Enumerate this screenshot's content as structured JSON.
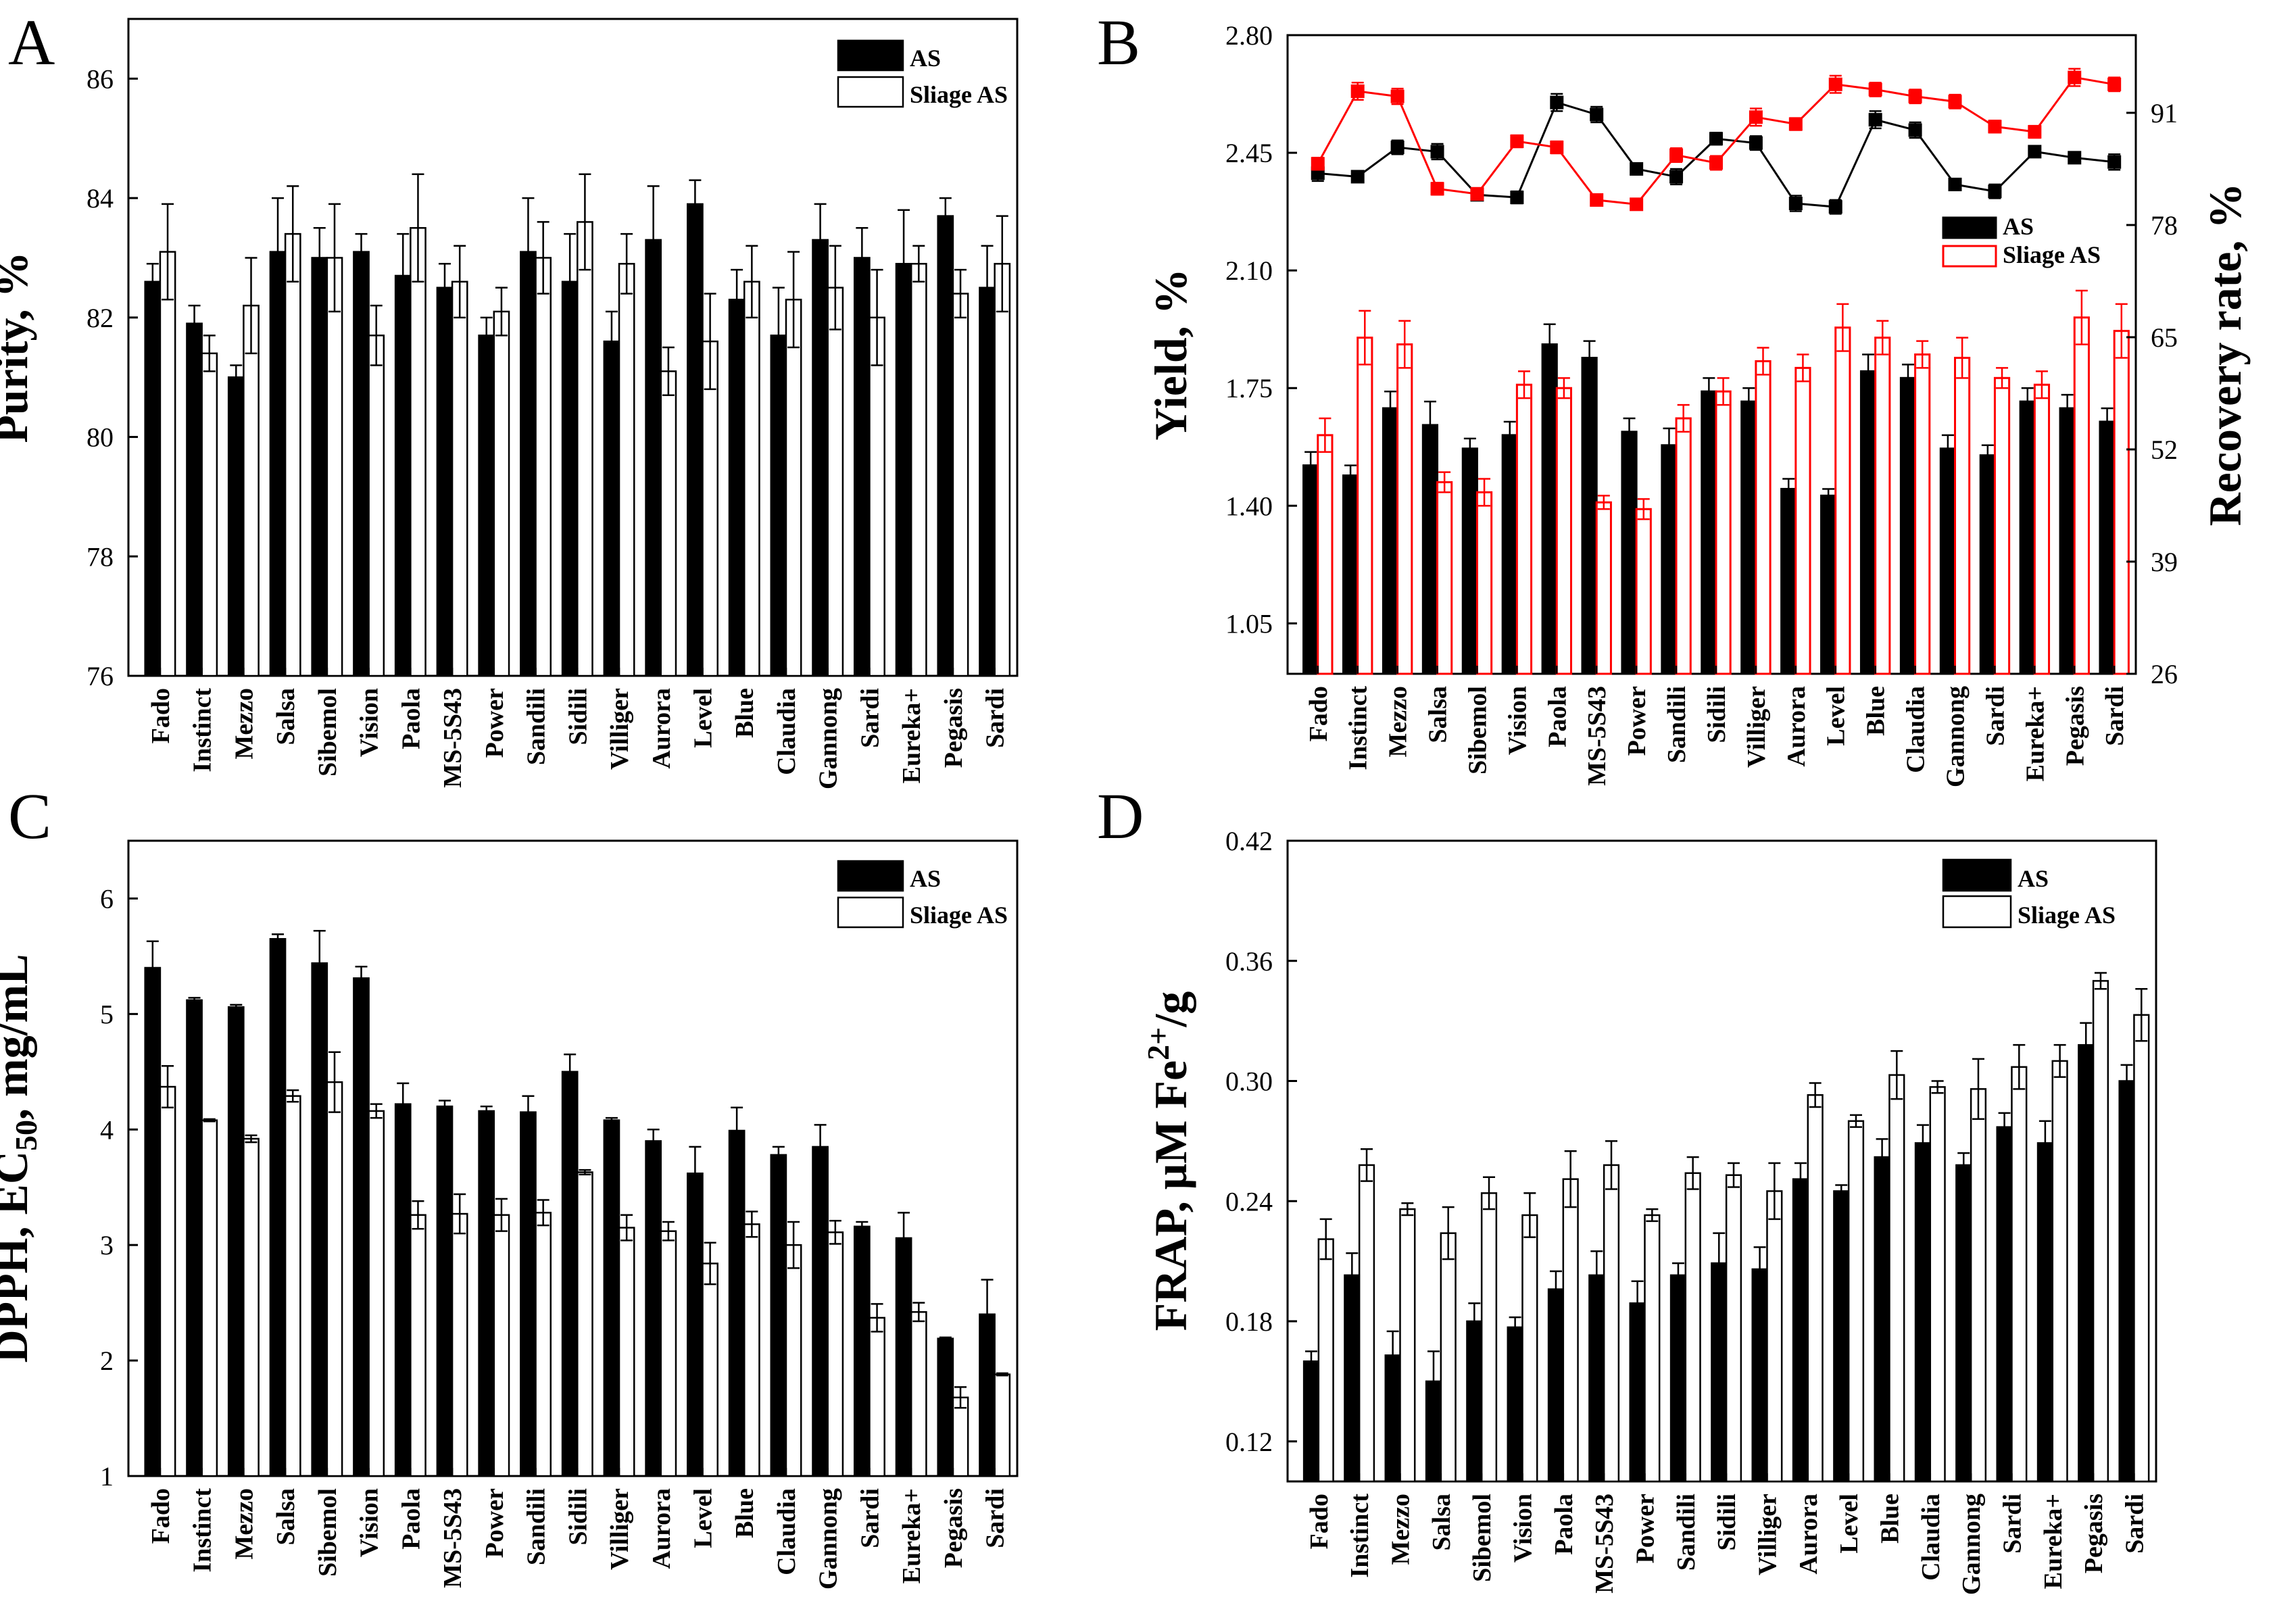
{
  "chart_data": [
    {
      "panel": "A",
      "type": "bar",
      "categories": [
        "Fado",
        "Instinct",
        "Mezzo",
        "Salsa",
        "Sibemol",
        "Vision",
        "Paola",
        "MS-5S43",
        "Power",
        "Sandili",
        "Sidili",
        "Villiger",
        "Aurora",
        "Level",
        "Blue",
        "Claudia",
        "Gannong",
        "Sardi",
        "Eureka+",
        "Pegasis",
        "Sardi"
      ],
      "ylabel": "Purity, %",
      "ylim": [
        76,
        87
      ],
      "yticks": [
        "76",
        "78",
        "80",
        "82",
        "84",
        "86"
      ],
      "series": [
        {
          "name": "AS",
          "fill": "#000000",
          "values": [
            82.6,
            81.9,
            81.0,
            83.1,
            83.0,
            83.1,
            82.7,
            82.5,
            81.7,
            83.1,
            82.6,
            81.6,
            83.3,
            83.9,
            82.3,
            81.7,
            83.3,
            83.0,
            82.9,
            83.7,
            82.5
          ],
          "errors": [
            0.3,
            0.3,
            0.2,
            0.9,
            0.5,
            0.3,
            0.7,
            0.4,
            0.3,
            0.9,
            0.8,
            0.5,
            0.9,
            0.4,
            0.5,
            0.8,
            0.6,
            0.5,
            0.9,
            0.3,
            0.7
          ]
        },
        {
          "name": "Sliage AS",
          "fill": "#ffffff",
          "values": [
            83.1,
            81.4,
            82.2,
            83.4,
            83.0,
            81.7,
            83.5,
            82.6,
            82.1,
            83.0,
            83.6,
            82.9,
            81.1,
            81.6,
            82.6,
            82.3,
            82.5,
            82.0,
            82.9,
            82.4,
            82.9
          ],
          "errors": [
            0.8,
            0.3,
            0.8,
            0.8,
            0.9,
            0.5,
            0.9,
            0.6,
            0.4,
            0.6,
            0.8,
            0.5,
            0.4,
            0.8,
            0.6,
            0.8,
            0.7,
            0.8,
            0.3,
            0.4,
            0.8
          ]
        }
      ]
    },
    {
      "panel": "B",
      "type": "bar",
      "categories": [
        "Fado",
        "Instinct",
        "Mezzo",
        "Salsa",
        "Sibemol",
        "Vision",
        "Paola",
        "MS-5S43",
        "Power",
        "Sandili",
        "Sidili",
        "Villiger",
        "Aurora",
        "Level",
        "Blue",
        "Claudia",
        "Gannong",
        "Sardi",
        "Eureka+",
        "Pegasis",
        "Sardi"
      ],
      "ylabel": "Yield, %",
      "ylim": [
        0.9,
        2.8
      ],
      "yticks": [
        "1.05",
        "1.40",
        "1.75",
        "2.10",
        "2.45",
        "2.80"
      ],
      "ylabel_right": "Recovery rate, %",
      "ylim_right": [
        26,
        100
      ],
      "yticks_right": [
        "26",
        "39",
        "52",
        "65",
        "78",
        "91"
      ],
      "series": [
        {
          "name": "AS",
          "kind": "bar",
          "axis": "left",
          "color": "#000000",
          "values": [
            1.52,
            1.49,
            1.69,
            1.64,
            1.57,
            1.61,
            1.88,
            1.84,
            1.62,
            1.58,
            1.74,
            1.71,
            1.45,
            1.43,
            1.8,
            1.78,
            1.57,
            1.55,
            1.71,
            1.69,
            1.65
          ],
          "errors": [
            0.04,
            0.03,
            0.05,
            0.07,
            0.03,
            0.04,
            0.06,
            0.05,
            0.04,
            0.05,
            0.04,
            0.04,
            0.03,
            0.02,
            0.05,
            0.04,
            0.04,
            0.03,
            0.04,
            0.04,
            0.04
          ]
        },
        {
          "name": "Sliage AS",
          "kind": "bar",
          "axis": "left",
          "color": "#ff0000",
          "values": [
            1.61,
            1.9,
            1.88,
            1.47,
            1.44,
            1.76,
            1.75,
            1.41,
            1.39,
            1.66,
            1.74,
            1.83,
            1.81,
            1.93,
            1.9,
            1.85,
            1.84,
            1.78,
            1.76,
            1.96,
            1.92
          ],
          "errors": [
            0.05,
            0.08,
            0.07,
            0.03,
            0.04,
            0.04,
            0.03,
            0.02,
            0.03,
            0.04,
            0.04,
            0.04,
            0.04,
            0.07,
            0.05,
            0.04,
            0.06,
            0.03,
            0.04,
            0.08,
            0.08
          ]
        },
        {
          "name": "AS",
          "kind": "line",
          "axis": "right",
          "color": "#000000",
          "values": [
            84.0,
            83.6,
            87.0,
            86.5,
            81.5,
            81.2,
            92.2,
            90.8,
            84.5,
            83.6,
            88.0,
            87.5,
            80.5,
            80.1,
            90.2,
            89.0,
            82.7,
            81.9,
            86.5,
            85.8,
            85.3
          ],
          "errors": [
            0.9,
            0.5,
            0.8,
            0.9,
            0.6,
            0.7,
            1.0,
            0.9,
            0.5,
            0.9,
            0.7,
            0.8,
            0.9,
            0.8,
            1.0,
            0.9,
            0.6,
            0.8,
            0.6,
            0.5,
            0.9
          ]
        },
        {
          "name": "Sliage AS",
          "kind": "line",
          "axis": "right",
          "color": "#ff0000",
          "values": [
            85.1,
            93.5,
            92.9,
            82.2,
            81.6,
            87.7,
            87.0,
            80.9,
            80.4,
            86.1,
            85.2,
            90.5,
            89.7,
            94.3,
            93.7,
            92.9,
            92.3,
            89.4,
            88.8,
            95.1,
            94.3
          ],
          "errors": [
            0.7,
            1.0,
            0.9,
            0.7,
            0.7,
            0.7,
            0.7,
            0.6,
            0.6,
            0.8,
            0.8,
            1.0,
            0.7,
            1.0,
            0.8,
            0.8,
            0.8,
            0.7,
            0.7,
            1.0,
            0.8
          ]
        }
      ]
    },
    {
      "panel": "C",
      "type": "bar",
      "categories": [
        "Fado",
        "Instinct",
        "Mezzo",
        "Salsa",
        "Sibemol",
        "Vision",
        "Paola",
        "MS-5S43",
        "Power",
        "Sandili",
        "Sidili",
        "Villiger",
        "Aurora",
        "Level",
        "Blue",
        "Claudia",
        "Gannong",
        "Sardi",
        "Eureka+",
        "Pegasis",
        "Sardi"
      ],
      "ylabel": "DPPH, EC50, mg/mL",
      "ylabel_main": "DPPH, EC",
      "ylabel_sub": "50",
      "ylabel_tail": ", mg/mL",
      "ylim": [
        1,
        6.5
      ],
      "yticks": [
        "1",
        "2",
        "3",
        "4",
        "5",
        "6"
      ],
      "series": [
        {
          "name": "AS",
          "fill": "#000000",
          "values": [
            5.4,
            5.12,
            5.06,
            5.65,
            5.44,
            5.31,
            4.22,
            4.2,
            4.16,
            4.15,
            4.5,
            4.08,
            3.9,
            3.62,
            3.99,
            3.78,
            3.85,
            3.16,
            3.06,
            2.19,
            2.4
          ],
          "errors": [
            0.23,
            0.02,
            0.02,
            0.04,
            0.28,
            0.1,
            0.18,
            0.05,
            0.04,
            0.14,
            0.15,
            0.02,
            0.1,
            0.23,
            0.2,
            0.07,
            0.19,
            0.04,
            0.22,
            0.01,
            0.3
          ]
        },
        {
          "name": "Sliage AS",
          "fill": "#ffffff",
          "values": [
            4.37,
            4.08,
            3.92,
            4.29,
            4.41,
            4.16,
            3.26,
            3.27,
            3.26,
            3.28,
            3.63,
            3.15,
            3.12,
            2.84,
            3.18,
            3.0,
            3.11,
            2.37,
            2.42,
            1.68,
            1.88
          ],
          "errors": [
            0.18,
            0.01,
            0.03,
            0.05,
            0.26,
            0.06,
            0.12,
            0.17,
            0.14,
            0.11,
            0.02,
            0.11,
            0.08,
            0.18,
            0.11,
            0.2,
            0.1,
            0.12,
            0.08,
            0.09,
            0.01
          ]
        }
      ]
    },
    {
      "panel": "D",
      "type": "bar",
      "categories": [
        "Fado",
        "Instinct",
        "Mezzo",
        "Salsa",
        "Sibemol",
        "Vision",
        "Paola",
        "MS-5S43",
        "Power",
        "Sandili",
        "Sidili",
        "Villiger",
        "Aurora",
        "Level",
        "Blue",
        "Claudia",
        "Gannong",
        "Sardi",
        "Eureka+",
        "Pegasis",
        "Sardi"
      ],
      "ylabel": "FRAP, μM Fe2+/g",
      "ylabel_main": "FRAP, μM Fe",
      "ylabel_sup": "2+",
      "ylabel_tail": "/g",
      "ylim": [
        0.1,
        0.42
      ],
      "yticks": [
        "0.12",
        "0.18",
        "0.24",
        "0.30",
        "0.36",
        "0.42"
      ],
      "series": [
        {
          "name": "AS",
          "fill": "#000000",
          "values": [
            0.16,
            0.203,
            0.163,
            0.15,
            0.18,
            0.177,
            0.196,
            0.203,
            0.189,
            0.203,
            0.209,
            0.206,
            0.251,
            0.245,
            0.262,
            0.269,
            0.258,
            0.277,
            0.269,
            0.318,
            0.3
          ],
          "errors": [
            0.005,
            0.011,
            0.012,
            0.015,
            0.009,
            0.005,
            0.009,
            0.012,
            0.011,
            0.006,
            0.015,
            0.011,
            0.008,
            0.003,
            0.009,
            0.009,
            0.006,
            0.007,
            0.011,
            0.011,
            0.008
          ]
        },
        {
          "name": "Sliage AS",
          "fill": "#ffffff",
          "values": [
            0.221,
            0.258,
            0.236,
            0.224,
            0.244,
            0.233,
            0.251,
            0.258,
            0.233,
            0.254,
            0.253,
            0.245,
            0.293,
            0.28,
            0.303,
            0.297,
            0.296,
            0.307,
            0.31,
            0.35,
            0.333
          ],
          "errors": [
            0.01,
            0.008,
            0.003,
            0.013,
            0.008,
            0.011,
            0.014,
            0.012,
            0.003,
            0.008,
            0.006,
            0.014,
            0.006,
            0.003,
            0.012,
            0.003,
            0.015,
            0.011,
            0.008,
            0.004,
            0.013
          ]
        }
      ]
    }
  ],
  "panel_letters": {
    "a": "A",
    "b": "B",
    "c": "C",
    "d": "D"
  }
}
